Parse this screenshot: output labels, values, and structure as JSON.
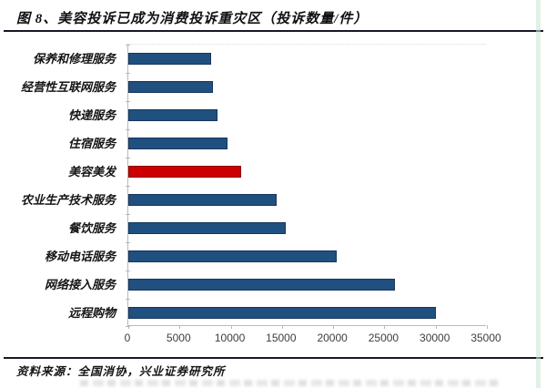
{
  "title": "图 8、美容投诉已成为消费投诉重灾区（投诉数量/件）",
  "source": "资料来源：全国消协，兴业证券研究所",
  "colors": {
    "bar": "#20507f",
    "bar_border": "#16365c",
    "highlight": "#cc0000",
    "highlight_border": "#8f0000",
    "axis": "#b9b9b9",
    "rule": "#181824",
    "tick_label": "#3d3d3d"
  },
  "chart_data": {
    "type": "bar",
    "orientation": "horizontal",
    "title": "图 8、美容投诉已成为消费投诉重灾区（投诉数量/件）",
    "categories": [
      "保养和修理服务",
      "经营性互联网服务",
      "快递服务",
      "住宿服务",
      "美容美发",
      "农业生产技术服务",
      "餐饮服务",
      "移动电话服务",
      "网络接入服务",
      "远程购物"
    ],
    "values": [
      8100,
      8300,
      8700,
      9700,
      11000,
      14500,
      15400,
      20300,
      26000,
      30000
    ],
    "highlight_category": "美容美发",
    "highlight_note": "red bar, all others dark blue",
    "xlabel": "",
    "ylabel": "",
    "xlim": [
      0,
      35000
    ],
    "x_ticks": [
      0,
      5000,
      10000,
      15000,
      20000,
      25000,
      30000,
      35000
    ],
    "grid": false,
    "legend": false
  }
}
